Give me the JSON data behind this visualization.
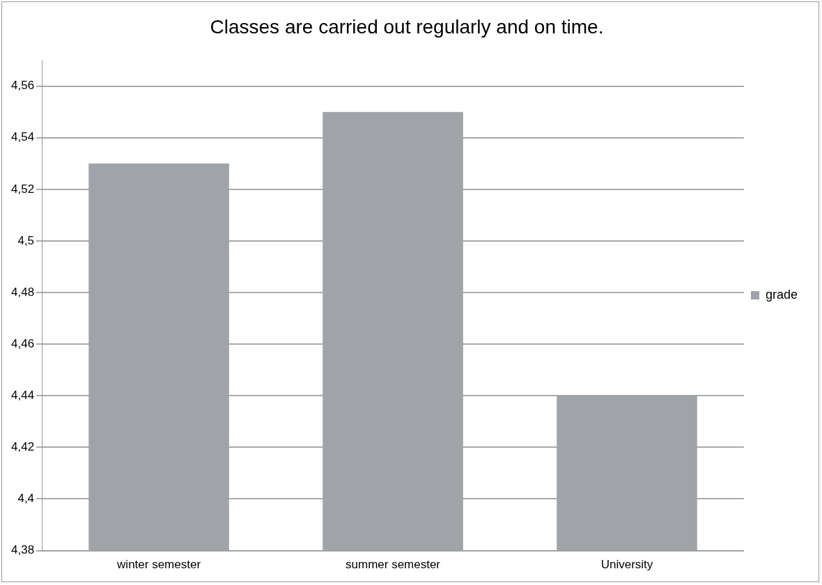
{
  "chart_data": {
    "type": "bar",
    "title": "Classes are carried out regularly and on time.",
    "categories": [
      "winter semester",
      "summer semester",
      "University"
    ],
    "series": [
      {
        "name": "grade",
        "color": "#a0a3a7",
        "values": [
          4.53,
          4.55,
          4.44
        ]
      }
    ],
    "ylim": [
      4.38,
      4.57
    ],
    "yticks": [
      {
        "value": 4.38,
        "label": "4,38"
      },
      {
        "value": 4.4,
        "label": "4,4"
      },
      {
        "value": 4.42,
        "label": "4,42"
      },
      {
        "value": 4.44,
        "label": "4,44"
      },
      {
        "value": 4.46,
        "label": "4,46"
      },
      {
        "value": 4.48,
        "label": "4,48"
      },
      {
        "value": 4.5,
        "label": "4,5"
      },
      {
        "value": 4.52,
        "label": "4,52"
      },
      {
        "value": 4.54,
        "label": "4,54"
      },
      {
        "value": 4.56,
        "label": "4,56"
      }
    ],
    "grid": "y",
    "legend": "right"
  }
}
